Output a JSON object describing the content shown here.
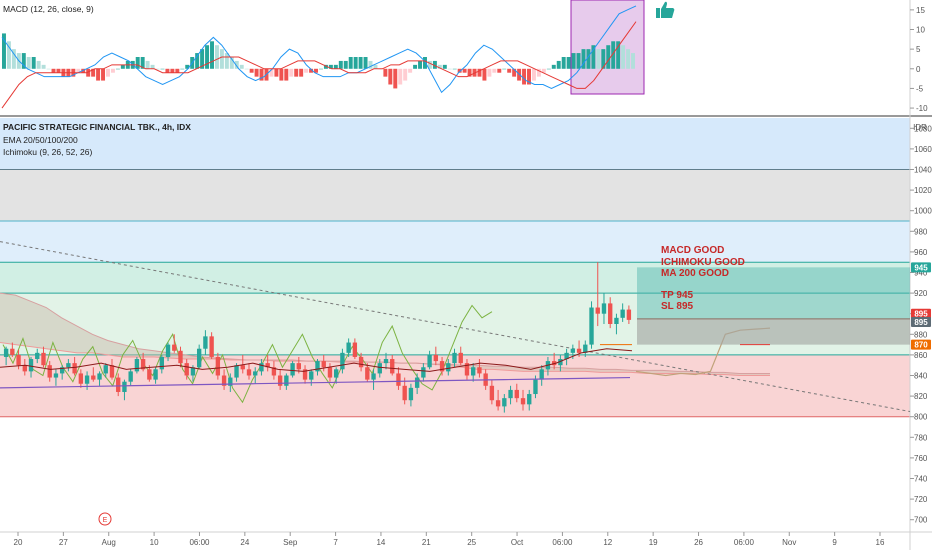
{
  "macd": {
    "legend": "MACD (12, 26, close, 9)",
    "ticks": [
      -10,
      -5,
      0,
      5,
      10,
      15
    ],
    "range": [
      -11,
      17
    ],
    "histogram": [
      9,
      7,
      5,
      4,
      4,
      3,
      3,
      2,
      1,
      0,
      -1,
      -1,
      -2,
      -2,
      -2,
      -1,
      -1,
      -2,
      -2,
      -3,
      -3,
      -2,
      -1,
      0,
      1,
      2,
      2,
      3,
      3,
      2,
      1,
      0,
      0,
      -1,
      -1,
      -1,
      0,
      1,
      3,
      4,
      5,
      6,
      7,
      6,
      5,
      4,
      3,
      2,
      1,
      0,
      -1,
      -2,
      -3,
      -3,
      -2,
      -2,
      -3,
      -3,
      -2,
      -2,
      -2,
      -1,
      -1,
      -1,
      0,
      1,
      1,
      1,
      2,
      2,
      3,
      3,
      3,
      3,
      2,
      1,
      0,
      -2,
      -4,
      -5,
      -4,
      -3,
      -1,
      1,
      2,
      3,
      2,
      2,
      1,
      1,
      0,
      0,
      -1,
      -1,
      -2,
      -2,
      -2,
      -3,
      -2,
      -1,
      -1,
      0,
      -1,
      -2,
      -3,
      -4,
      -4,
      -3,
      -2,
      -1,
      0,
      1,
      2,
      3,
      3,
      4,
      4,
      5,
      5,
      6,
      5,
      5,
      6,
      7,
      7,
      6,
      5,
      4
    ],
    "macd_line": [
      8,
      5,
      2,
      0,
      -1,
      -2,
      -2,
      -2,
      -2,
      -1,
      0,
      1,
      3,
      4,
      3,
      2,
      0,
      -2,
      -3,
      -4,
      -3,
      -2,
      0,
      3,
      6,
      8,
      6,
      3,
      0,
      -2,
      -3,
      -2,
      0,
      3,
      5,
      4,
      1,
      -1,
      -2,
      -2,
      -2,
      -1,
      -1,
      0,
      1,
      2,
      3,
      4,
      5,
      4,
      2,
      -2,
      -6,
      -4,
      -1,
      1,
      4,
      6,
      5,
      3,
      1,
      -1,
      -3,
      -4,
      -4,
      -5,
      -4,
      -3,
      -1,
      2,
      5,
      8,
      11,
      14,
      15,
      16
    ],
    "signal_line": [
      -10,
      -7,
      -4,
      -2,
      -1,
      -1,
      -1,
      -1,
      -1,
      -1,
      -1,
      0,
      0,
      1,
      1,
      1,
      1,
      0,
      0,
      -1,
      -1,
      -1,
      -1,
      0,
      1,
      2,
      3,
      3,
      3,
      2,
      1,
      0,
      0,
      0,
      1,
      2,
      2,
      2,
      1,
      0,
      0,
      -1,
      -1,
      -1,
      0,
      0,
      1,
      1,
      2,
      2,
      2,
      1,
      0,
      -1,
      -2,
      -2,
      -1,
      0,
      1,
      2,
      2,
      2,
      1,
      0,
      -1,
      -2,
      -3,
      -4,
      -5,
      -5,
      -3,
      0,
      3,
      6,
      9,
      12
    ]
  },
  "legend": {
    "title": "PACIFIC STRATEGIC FINANCIAL TBK., 4h, IDX",
    "ema": "EMA 20/50/100/200",
    "ichimoku": "Ichimoku (9, 26, 52, 26)",
    "currency": "IDR"
  },
  "chart_data": {
    "type": "candlestick",
    "title": "PACIFIC STRATEGIC FINANCIAL TBK., 4h, IDX",
    "y_ticks": [
      700,
      720,
      740,
      760,
      780,
      800,
      820,
      840,
      860,
      880,
      900,
      920,
      940,
      960,
      980,
      1000,
      1020,
      1040,
      1060,
      1080
    ],
    "y_range": [
      690,
      1090
    ],
    "x_ticks": [
      "20",
      "27",
      "Aug",
      "10",
      "06:00",
      "24",
      "Sep",
      "7",
      "14",
      "21",
      "25",
      "Oct",
      "06:00",
      "12",
      "19",
      "26",
      "06:00",
      "Nov",
      "9",
      "16"
    ],
    "zones": [
      {
        "from": 1040,
        "to": 1090,
        "color": "#d6e9fb"
      },
      {
        "from": 990,
        "to": 1040,
        "color": "#e3e3e3"
      },
      {
        "from": 950,
        "to": 990,
        "color": "#dfeefb"
      },
      {
        "from": 920,
        "to": 950,
        "color": "#d1efe4"
      },
      {
        "from": 860,
        "to": 920,
        "color": "#e2f3e7"
      },
      {
        "from": 800,
        "to": 860,
        "color": "#f9d4d4"
      }
    ],
    "levels": [
      {
        "value": 1040,
        "color": "#607d8b"
      },
      {
        "value": 990,
        "color": "#4fb3c9"
      },
      {
        "value": 950,
        "color": "#26a69a"
      },
      {
        "value": 920,
        "color": "#26a69a"
      },
      {
        "value": 860,
        "color": "#26a69a"
      },
      {
        "value": 800,
        "color": "#e06666"
      }
    ],
    "candles": [
      [
        858,
        868,
        850,
        866
      ],
      [
        866,
        872,
        858,
        860
      ],
      [
        860,
        865,
        846,
        850
      ],
      [
        850,
        856,
        840,
        844
      ],
      [
        844,
        858,
        838,
        856
      ],
      [
        856,
        866,
        852,
        862
      ],
      [
        862,
        868,
        848,
        850
      ],
      [
        850,
        854,
        834,
        838
      ],
      [
        838,
        846,
        830,
        842
      ],
      [
        842,
        850,
        836,
        848
      ],
      [
        848,
        856,
        844,
        852
      ],
      [
        852,
        858,
        840,
        842
      ],
      [
        842,
        846,
        828,
        832
      ],
      [
        832,
        844,
        826,
        840
      ],
      [
        840,
        848,
        834,
        836
      ],
      [
        836,
        844,
        830,
        842
      ],
      [
        842,
        852,
        838,
        850
      ],
      [
        850,
        856,
        836,
        838
      ],
      [
        838,
        842,
        820,
        824
      ],
      [
        824,
        836,
        816,
        834
      ],
      [
        834,
        846,
        830,
        844
      ],
      [
        844,
        858,
        842,
        856
      ],
      [
        856,
        862,
        844,
        846
      ],
      [
        846,
        850,
        834,
        836
      ],
      [
        836,
        848,
        832,
        846
      ],
      [
        846,
        860,
        842,
        858
      ],
      [
        858,
        872,
        854,
        870
      ],
      [
        870,
        880,
        862,
        864
      ],
      [
        864,
        868,
        848,
        852
      ],
      [
        852,
        856,
        836,
        840
      ],
      [
        840,
        850,
        834,
        848
      ],
      [
        848,
        870,
        846,
        866
      ],
      [
        866,
        884,
        860,
        878
      ],
      [
        878,
        882,
        856,
        858
      ],
      [
        858,
        862,
        836,
        840
      ],
      [
        840,
        846,
        826,
        830
      ],
      [
        830,
        842,
        824,
        838
      ],
      [
        838,
        852,
        834,
        850
      ],
      [
        850,
        860,
        842,
        846
      ],
      [
        846,
        852,
        836,
        840
      ],
      [
        840,
        848,
        832,
        844
      ],
      [
        844,
        856,
        840,
        852
      ],
      [
        852,
        860,
        844,
        848
      ],
      [
        848,
        854,
        836,
        840
      ],
      [
        840,
        846,
        826,
        830
      ],
      [
        830,
        842,
        826,
        840
      ],
      [
        840,
        854,
        838,
        852
      ],
      [
        852,
        858,
        842,
        846
      ],
      [
        846,
        850,
        832,
        836
      ],
      [
        836,
        846,
        830,
        844
      ],
      [
        844,
        856,
        840,
        854
      ],
      [
        854,
        860,
        844,
        848
      ],
      [
        848,
        852,
        834,
        838
      ],
      [
        838,
        848,
        832,
        846
      ],
      [
        846,
        866,
        842,
        862
      ],
      [
        862,
        876,
        858,
        872
      ],
      [
        872,
        876,
        856,
        858
      ],
      [
        858,
        862,
        844,
        848
      ],
      [
        848,
        852,
        834,
        836
      ],
      [
        836,
        846,
        826,
        842
      ],
      [
        842,
        856,
        838,
        852
      ],
      [
        852,
        862,
        846,
        856
      ],
      [
        856,
        860,
        840,
        842
      ],
      [
        842,
        848,
        826,
        830
      ],
      [
        830,
        838,
        812,
        816
      ],
      [
        816,
        832,
        810,
        828
      ],
      [
        828,
        842,
        822,
        838
      ],
      [
        838,
        852,
        834,
        848
      ],
      [
        848,
        864,
        846,
        860
      ],
      [
        860,
        868,
        850,
        854
      ],
      [
        854,
        858,
        840,
        844
      ],
      [
        844,
        856,
        840,
        852
      ],
      [
        852,
        866,
        848,
        862
      ],
      [
        862,
        868,
        850,
        852
      ],
      [
        852,
        856,
        836,
        840
      ],
      [
        840,
        852,
        834,
        848
      ],
      [
        848,
        856,
        838,
        842
      ],
      [
        842,
        846,
        826,
        830
      ],
      [
        830,
        836,
        812,
        816
      ],
      [
        816,
        826,
        806,
        810
      ],
      [
        810,
        822,
        804,
        818
      ],
      [
        818,
        830,
        812,
        826
      ],
      [
        826,
        832,
        814,
        818
      ],
      [
        818,
        826,
        806,
        812
      ],
      [
        812,
        826,
        806,
        822
      ],
      [
        822,
        840,
        818,
        836
      ],
      [
        836,
        850,
        830,
        846
      ],
      [
        846,
        858,
        840,
        854
      ],
      [
        854,
        862,
        846,
        850
      ],
      [
        850,
        860,
        844,
        856
      ],
      [
        856,
        866,
        850,
        862
      ],
      [
        862,
        870,
        856,
        866
      ],
      [
        866,
        874,
        858,
        862
      ],
      [
        862,
        874,
        858,
        870
      ],
      [
        870,
        912,
        866,
        906
      ],
      [
        906,
        950,
        888,
        900
      ],
      [
        900,
        920,
        890,
        910
      ],
      [
        910,
        916,
        886,
        890
      ],
      [
        890,
        900,
        880,
        896
      ],
      [
        896,
        910,
        892,
        904
      ],
      [
        904,
        908,
        890,
        894
      ]
    ],
    "cloud_a": [
      872,
      870,
      868,
      866,
      864,
      862,
      862,
      860,
      858,
      858,
      858,
      857,
      856,
      856,
      856,
      855,
      855,
      855,
      854,
      854,
      854,
      854,
      853,
      853,
      853,
      853,
      852,
      852,
      851,
      850,
      848,
      846,
      846,
      845,
      844,
      844,
      844,
      844,
      844,
      843,
      843,
      843,
      842,
      842,
      842,
      842,
      841,
      841,
      840,
      840,
      840
    ],
    "cloud_b": [
      920,
      918,
      912,
      906,
      896,
      888,
      880,
      874,
      870,
      866,
      864,
      862,
      860,
      858,
      857,
      856,
      855,
      855,
      855,
      855,
      854,
      854,
      854,
      854,
      853,
      853,
      852,
      852,
      851,
      851,
      850,
      850,
      849,
      849,
      848,
      848,
      848,
      847,
      847,
      846,
      846,
      845,
      845,
      845,
      844,
      844,
      843,
      843,
      842,
      842,
      842
    ],
    "lagging": [
      870,
      852,
      876,
      846,
      840,
      872,
      848,
      834,
      856,
      868,
      842,
      830,
      860,
      874,
      852,
      840,
      864,
      880,
      846,
      832,
      858,
      842,
      860,
      828,
      814,
      836,
      852,
      870,
      848,
      864,
      880,
      858,
      842,
      828,
      850,
      868,
      856,
      842,
      872,
      888,
      862,
      846,
      832,
      826,
      844,
      868,
      892,
      908,
      896,
      902
    ],
    "lagging_future": [
      844,
      842,
      840,
      842,
      841,
      844,
      880,
      884,
      885,
      886
    ],
    "ema_slow": [
      828,
      829,
      830,
      831,
      832,
      833,
      834,
      835,
      836,
      837,
      838
    ],
    "ema_fast": [
      848,
      850,
      846,
      848,
      852,
      846,
      848,
      850,
      846,
      848,
      852,
      846,
      844,
      848,
      852,
      848,
      846,
      844,
      848,
      852,
      850,
      846,
      852,
      862,
      866,
      864
    ],
    "trend_line": {
      "from": 970,
      "to": 805
    },
    "tp_sl": {
      "tp_from": 870,
      "tp_to": 945,
      "sl_from": 870,
      "sl_to": 895
    },
    "annotations": [
      "MACD GOOD",
      "ICHIMOKU GOOD",
      "MA 200 GOOD",
      "TP 945",
      "SL 895"
    ],
    "price_badges": [
      {
        "label": "945",
        "value": 945,
        "color": "#26a69a"
      },
      {
        "label": "895",
        "value": 900,
        "color": "#e53935"
      },
      {
        "label": "895",
        "value": 892,
        "color": "#5d6b75"
      },
      {
        "label": "870",
        "value": 870,
        "color": "#ef6c00"
      }
    ],
    "colors": {
      "up": "#26a69a",
      "down": "#ef5350",
      "macd": "#2196f3",
      "signal": "#e53935",
      "ema_slow": "#7e57c2",
      "ema_fast": "#8b1a1a",
      "lagging": "#7cb342",
      "cloud_a": "#ef9a9a",
      "cloud_b": "#d7a0a0",
      "highlight": "#e1bee7"
    }
  }
}
